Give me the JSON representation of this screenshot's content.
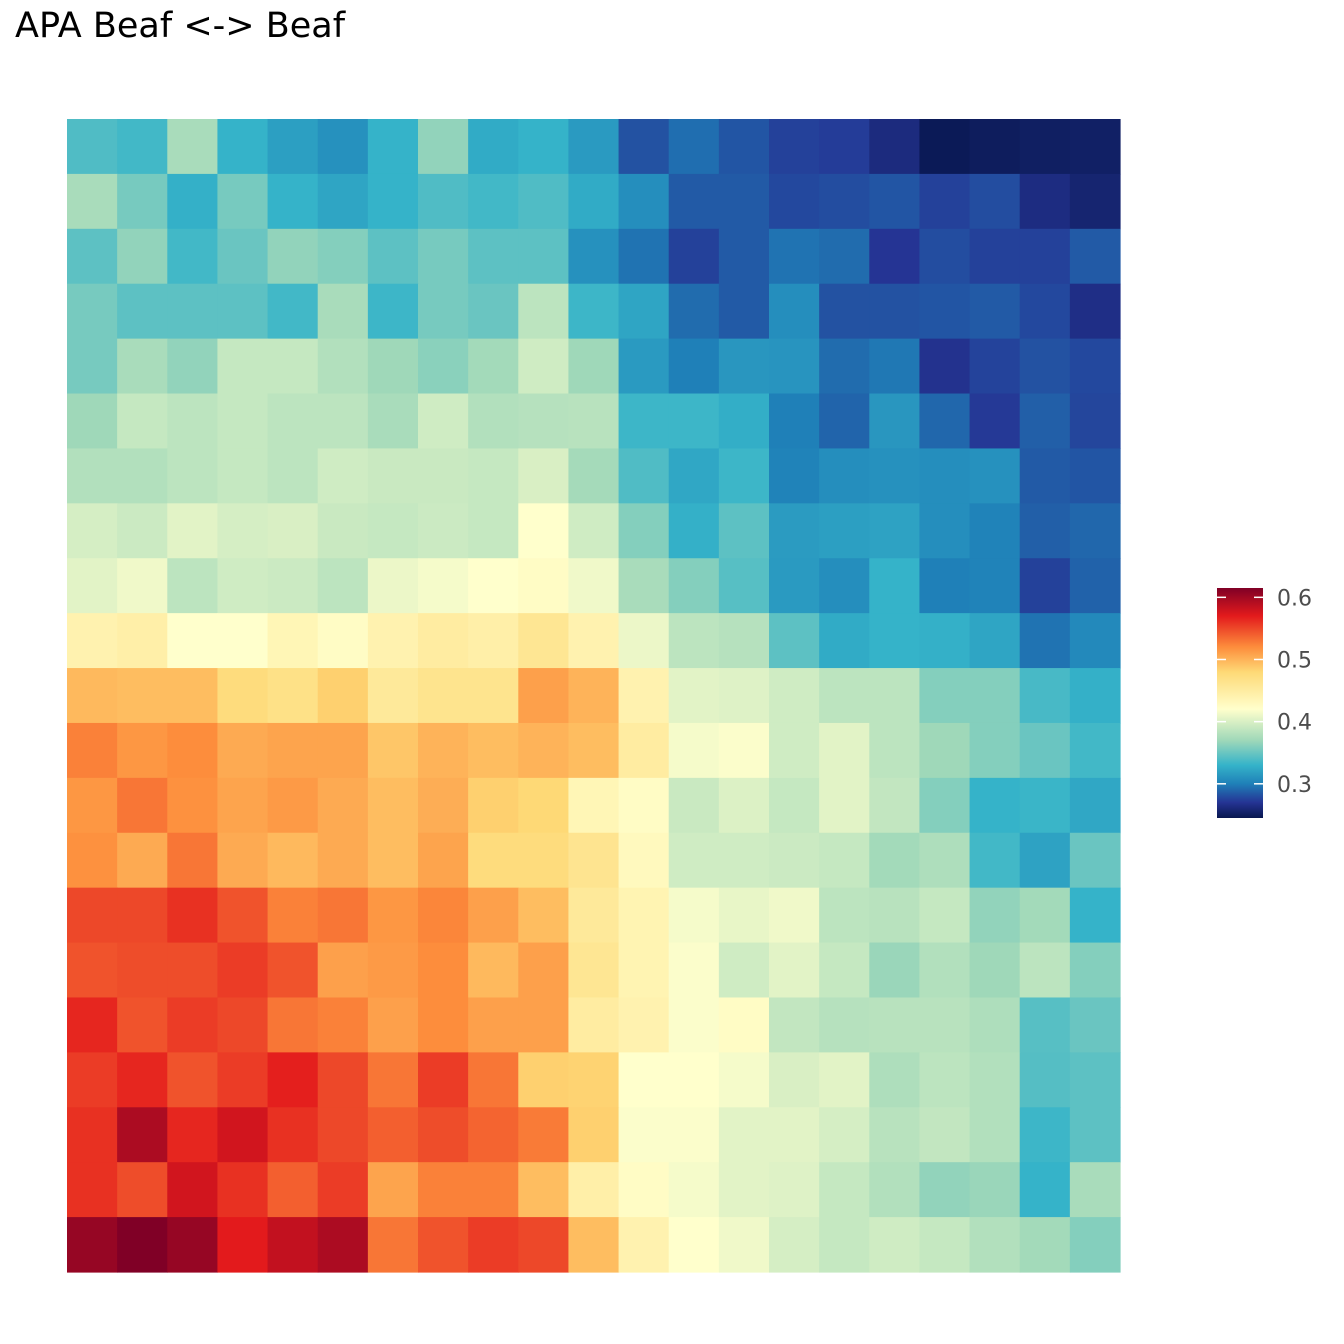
{
  "chart_data": {
    "type": "heatmap",
    "title": "APA Beaf <-> Beaf",
    "xlabel": "",
    "ylabel": "",
    "n_cols": 21,
    "n_rows": 21,
    "value_range": [
      0.245,
      0.615
    ],
    "colorbar": {
      "ticks": [
        0.3,
        0.4,
        0.5,
        0.6
      ],
      "tick_labels": [
        "0.3",
        "0.4",
        "0.5",
        "0.6"
      ],
      "placement": "right",
      "palette": [
        "#08174f",
        "#253494",
        "#1f80b8",
        "#35b3c9",
        "#9fd8b9",
        "#ffffcc",
        "#fed976",
        "#fd8d3c",
        "#e31a1c",
        "#800026"
      ],
      "palette_stops": [
        0.245,
        0.27,
        0.3,
        0.33,
        0.37,
        0.42,
        0.48,
        0.52,
        0.57,
        0.615
      ]
    },
    "grid": false,
    "values": [
      [
        0.34,
        0.335,
        0.375,
        0.33,
        0.318,
        0.31,
        0.33,
        0.365,
        0.325,
        0.33,
        0.315,
        0.282,
        0.293,
        0.283,
        0.275,
        0.273,
        0.262,
        0.248,
        0.25,
        0.252,
        0.253
      ],
      [
        0.375,
        0.355,
        0.328,
        0.355,
        0.33,
        0.322,
        0.33,
        0.34,
        0.335,
        0.34,
        0.325,
        0.308,
        0.285,
        0.285,
        0.278,
        0.28,
        0.283,
        0.275,
        0.28,
        0.263,
        0.257
      ],
      [
        0.345,
        0.365,
        0.335,
        0.35,
        0.365,
        0.36,
        0.345,
        0.355,
        0.345,
        0.345,
        0.31,
        0.295,
        0.275,
        0.285,
        0.295,
        0.292,
        0.27,
        0.28,
        0.275,
        0.275,
        0.285
      ],
      [
        0.355,
        0.345,
        0.345,
        0.345,
        0.335,
        0.375,
        0.333,
        0.355,
        0.35,
        0.385,
        0.333,
        0.322,
        0.292,
        0.285,
        0.308,
        0.282,
        0.282,
        0.283,
        0.285,
        0.278,
        0.265
      ],
      [
        0.355,
        0.375,
        0.365,
        0.39,
        0.39,
        0.38,
        0.37,
        0.362,
        0.372,
        0.395,
        0.37,
        0.315,
        0.3,
        0.313,
        0.312,
        0.292,
        0.297,
        0.268,
        0.276,
        0.282,
        0.278
      ],
      [
        0.37,
        0.39,
        0.385,
        0.39,
        0.385,
        0.385,
        0.375,
        0.395,
        0.38,
        0.382,
        0.383,
        0.333,
        0.333,
        0.327,
        0.3,
        0.289,
        0.313,
        0.29,
        0.272,
        0.287,
        0.277
      ],
      [
        0.38,
        0.38,
        0.385,
        0.39,
        0.385,
        0.395,
        0.392,
        0.392,
        0.39,
        0.4,
        0.373,
        0.34,
        0.323,
        0.333,
        0.302,
        0.308,
        0.31,
        0.308,
        0.31,
        0.285,
        0.283
      ],
      [
        0.398,
        0.393,
        0.405,
        0.398,
        0.4,
        0.392,
        0.39,
        0.393,
        0.39,
        0.42,
        0.395,
        0.36,
        0.328,
        0.345,
        0.316,
        0.318,
        0.32,
        0.308,
        0.302,
        0.287,
        0.29
      ],
      [
        0.405,
        0.412,
        0.385,
        0.395,
        0.393,
        0.385,
        0.41,
        0.415,
        0.42,
        0.425,
        0.412,
        0.375,
        0.36,
        0.343,
        0.315,
        0.308,
        0.33,
        0.3,
        0.302,
        0.275,
        0.288
      ],
      [
        0.44,
        0.445,
        0.42,
        0.42,
        0.435,
        0.425,
        0.44,
        0.45,
        0.445,
        0.46,
        0.44,
        0.41,
        0.385,
        0.382,
        0.345,
        0.325,
        0.33,
        0.328,
        0.322,
        0.295,
        0.305
      ],
      [
        0.497,
        0.495,
        0.495,
        0.475,
        0.468,
        0.485,
        0.455,
        0.463,
        0.463,
        0.51,
        0.5,
        0.44,
        0.405,
        0.403,
        0.395,
        0.385,
        0.385,
        0.36,
        0.36,
        0.337,
        0.328
      ],
      [
        0.525,
        0.515,
        0.52,
        0.505,
        0.508,
        0.508,
        0.49,
        0.5,
        0.495,
        0.5,
        0.495,
        0.45,
        0.415,
        0.418,
        0.395,
        0.405,
        0.385,
        0.37,
        0.36,
        0.35,
        0.335
      ],
      [
        0.515,
        0.53,
        0.518,
        0.508,
        0.513,
        0.505,
        0.495,
        0.503,
        0.485,
        0.48,
        0.435,
        0.425,
        0.392,
        0.402,
        0.39,
        0.405,
        0.388,
        0.36,
        0.33,
        0.332,
        0.323
      ],
      [
        0.518,
        0.505,
        0.53,
        0.505,
        0.497,
        0.505,
        0.495,
        0.508,
        0.475,
        0.475,
        0.462,
        0.43,
        0.395,
        0.395,
        0.393,
        0.39,
        0.372,
        0.378,
        0.335,
        0.32,
        0.35
      ],
      [
        0.55,
        0.55,
        0.56,
        0.545,
        0.525,
        0.53,
        0.515,
        0.523,
        0.51,
        0.495,
        0.455,
        0.438,
        0.415,
        0.408,
        0.412,
        0.385,
        0.383,
        0.39,
        0.365,
        0.372,
        0.33
      ],
      [
        0.545,
        0.548,
        0.548,
        0.555,
        0.545,
        0.51,
        0.513,
        0.52,
        0.497,
        0.51,
        0.46,
        0.438,
        0.418,
        0.395,
        0.405,
        0.39,
        0.368,
        0.38,
        0.37,
        0.385,
        0.36
      ],
      [
        0.565,
        0.545,
        0.555,
        0.55,
        0.53,
        0.525,
        0.51,
        0.52,
        0.51,
        0.51,
        0.45,
        0.44,
        0.418,
        0.425,
        0.388,
        0.382,
        0.383,
        0.383,
        0.378,
        0.343,
        0.35
      ],
      [
        0.555,
        0.565,
        0.545,
        0.555,
        0.568,
        0.55,
        0.53,
        0.555,
        0.53,
        0.485,
        0.483,
        0.42,
        0.42,
        0.415,
        0.4,
        0.405,
        0.378,
        0.385,
        0.38,
        0.342,
        0.345
      ],
      [
        0.56,
        0.595,
        0.565,
        0.578,
        0.56,
        0.55,
        0.54,
        0.548,
        0.538,
        0.528,
        0.485,
        0.418,
        0.418,
        0.405,
        0.405,
        0.398,
        0.383,
        0.388,
        0.38,
        0.333,
        0.345
      ],
      [
        0.56,
        0.548,
        0.578,
        0.56,
        0.54,
        0.555,
        0.508,
        0.525,
        0.525,
        0.495,
        0.445,
        0.425,
        0.415,
        0.405,
        0.403,
        0.39,
        0.38,
        0.365,
        0.368,
        0.33,
        0.375
      ],
      [
        0.605,
        0.615,
        0.605,
        0.57,
        0.585,
        0.595,
        0.53,
        0.545,
        0.555,
        0.55,
        0.495,
        0.44,
        0.42,
        0.412,
        0.398,
        0.39,
        0.395,
        0.39,
        0.38,
        0.372,
        0.36
      ]
    ]
  }
}
